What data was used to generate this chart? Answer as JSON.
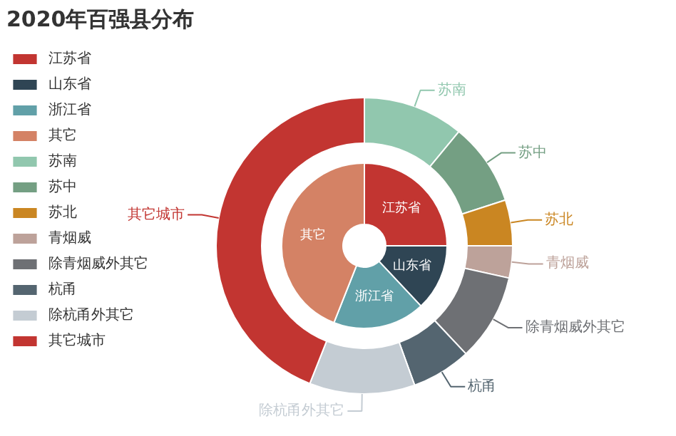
{
  "chart_data": [
    {
      "type": "donut",
      "title": "2020年百强县分布",
      "categories": [
        "江苏省",
        "山东省",
        "浙江省",
        "其它"
      ],
      "values": [
        25,
        13,
        18,
        44
      ],
      "colors": [
        "#c23531",
        "#2f4554",
        "#61a0a8",
        "#d48265"
      ],
      "legend": "left"
    },
    {
      "type": "donut",
      "categories": [
        "苏南",
        "苏中",
        "苏北",
        "青烟威",
        "除青烟威外其它",
        "杭甬",
        "除杭甬外其它",
        "其它城市"
      ],
      "values": [
        11,
        9,
        5,
        3.5,
        9.5,
        6.5,
        11.5,
        44
      ],
      "colors": [
        "#91c7ae",
        "#749f83",
        "#ca8622",
        "#bda29a",
        "#6e7074",
        "#546570",
        "#c4ccd3",
        "#c23531"
      ],
      "legend": "left"
    }
  ]
}
